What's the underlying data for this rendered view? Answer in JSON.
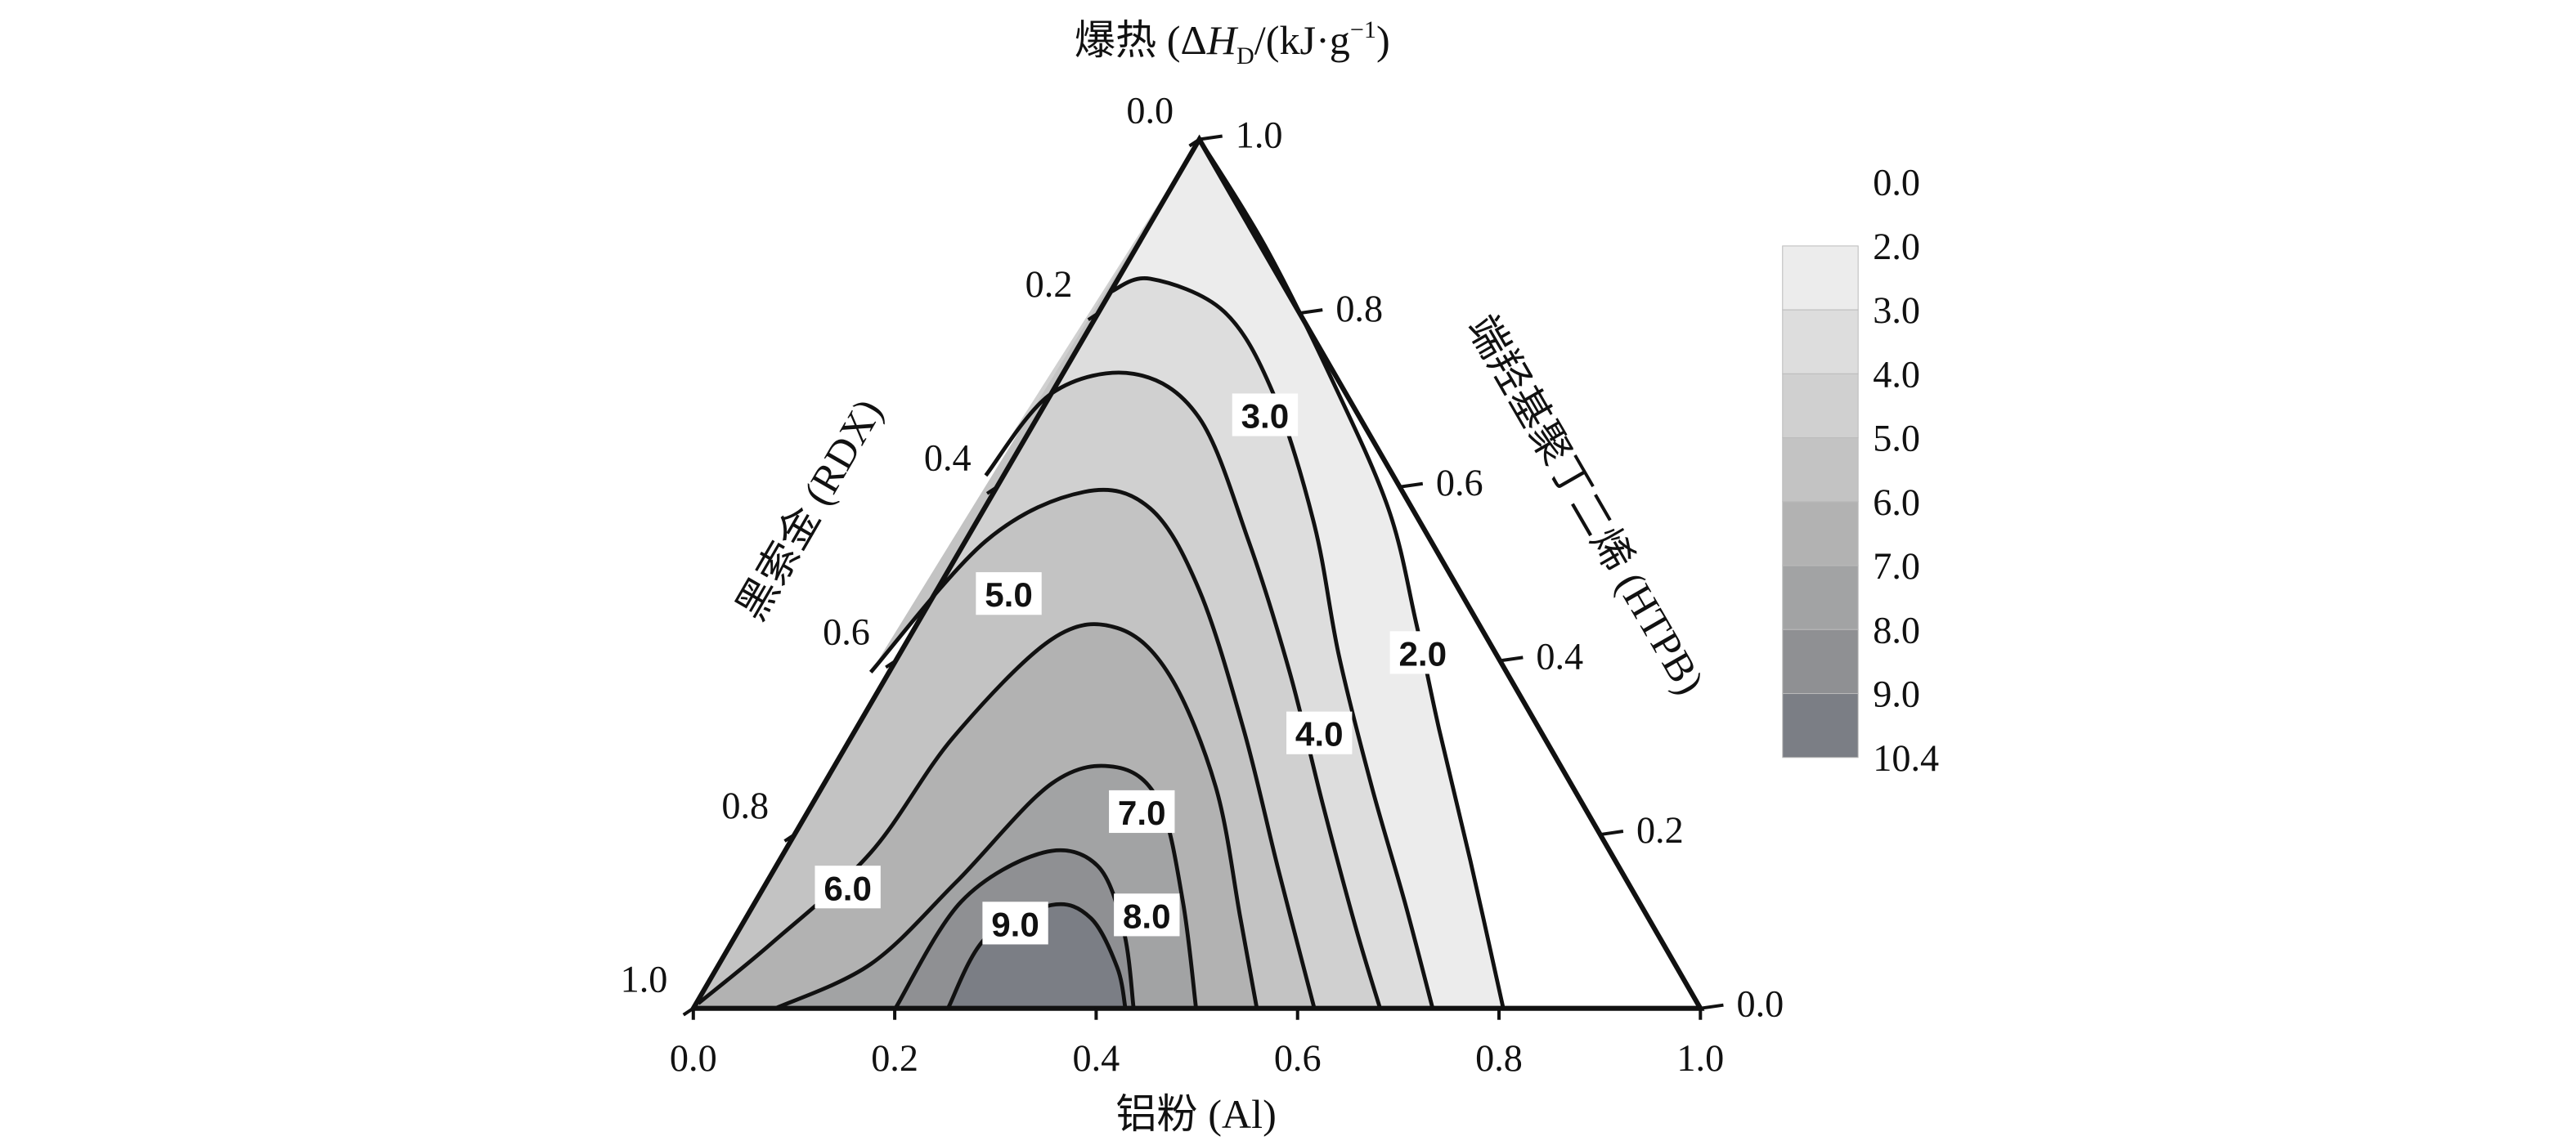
{
  "chart_data": {
    "type": "ternary_contour",
    "title": [
      "爆热 (Δ",
      "H",
      "D",
      "/(kJ·g",
      "−1",
      ")"
    ],
    "axes": {
      "bottom": {
        "label": "铝粉 (Al)",
        "ticks": [
          {
            "value": 0,
            "label": "0.0"
          },
          0.2,
          0.4,
          0.6,
          0.8,
          {
            "value": 1,
            "label": "1.0"
          }
        ]
      },
      "left": {
        "label": "黑索金 (RDX)",
        "ticks": [
          {
            "value": 0,
            "label": "0.0"
          },
          0.2,
          0.4,
          0.6,
          0.8,
          {
            "value": 1,
            "label": "1.0"
          }
        ]
      },
      "right": {
        "label": "端羟基聚丁二烯 (HTPB)",
        "ticks": [
          {
            "value": 0,
            "label": "0.0"
          },
          0.2,
          0.4,
          0.6,
          0.8,
          {
            "value": 1,
            "label": "1.0"
          }
        ]
      }
    },
    "contours": [
      {
        "value": 2,
        "label": "2.0"
      },
      {
        "value": 3,
        "label": "3.0"
      },
      {
        "value": 4,
        "label": "4.0"
      },
      {
        "value": 5,
        "label": "5.0"
      },
      {
        "value": 6,
        "label": "6.0"
      },
      {
        "value": 7,
        "label": "7.0"
      },
      {
        "value": 8,
        "label": "8.0"
      },
      {
        "value": 9,
        "label": "9.0"
      }
    ],
    "colorbar": {
      "levels": [
        {
          "value": 0,
          "label": "0.0"
        },
        {
          "value": 2,
          "label": "2.0"
        },
        {
          "value": 3,
          "label": "3.0"
        },
        {
          "value": 4,
          "label": "4.0"
        },
        {
          "value": 5,
          "label": "5.0"
        },
        {
          "value": 6,
          "label": "6.0"
        },
        {
          "value": 7,
          "label": "7.0"
        },
        {
          "value": 8,
          "label": "8.0"
        },
        {
          "value": 9,
          "label": "9.0"
        },
        10.4
      ],
      "colors": [
        "#ececec",
        "#dddddd",
        "#d0d0d0",
        "#c3c3c3",
        "#b2b2b2",
        "#a2a3a4",
        "#8f9093",
        "#7b7e85"
      ]
    }
  }
}
